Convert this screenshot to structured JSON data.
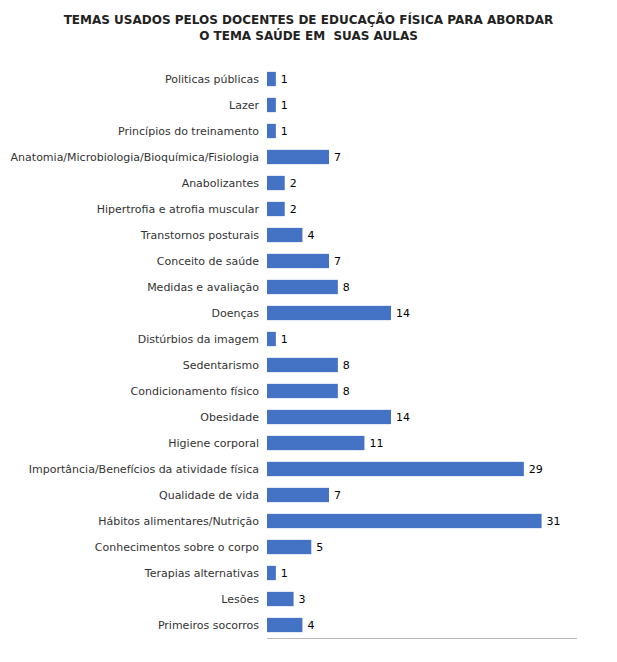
{
  "chart_data": {
    "type": "bar",
    "orientation": "horizontal",
    "title": "TEMAS USADOS PELOS DOCENTES DE EDUCAÇÃO FÍSICA PARA ABORDAR\nO TEMA SAÚDE EM  SUAS AULAS",
    "categories": [
      "Primeiros socorros",
      "Lesões",
      "Terapias alternativas",
      "Conhecimentos sobre o corpo",
      "Hábitos alimentares/Nutrição",
      "Qualidade de vida",
      "Importância/Benefícios da atividade física",
      "Higiene corporal",
      "Obesidade",
      "Condicionamento físico",
      "Sedentarismo",
      "Distúrbios da imagem",
      "Doenças",
      "Medidas e avaliação",
      "Conceito de saúde",
      "Transtornos posturais",
      "Hipertrofia e atrofia muscular",
      "Anabolizantes",
      "Anatomia/Microbiologia/Bioquímica/Fisiologia",
      "Princípios do treinamento",
      "Lazer",
      "Politicas públicas"
    ],
    "values": [
      4,
      3,
      1,
      5,
      31,
      7,
      29,
      11,
      14,
      8,
      8,
      1,
      14,
      8,
      7,
      4,
      2,
      2,
      7,
      1,
      1,
      1
    ],
    "color": "#4472C4",
    "xlim": [
      0,
      35
    ],
    "data_labels": true,
    "tick_labels": "y"
  }
}
